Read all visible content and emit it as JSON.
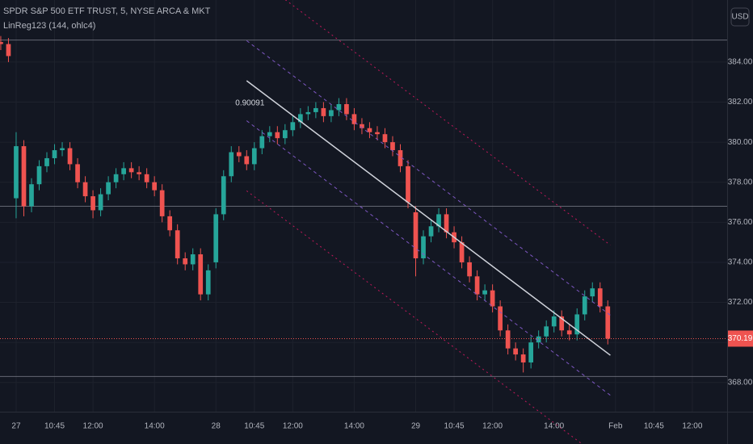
{
  "chart_data": {
    "type": "candlestick",
    "title": "SPDR S&P 500 ETF TRUST, 5, NYSE ARCA & MKT",
    "indicator": "LinReg123 (144, ohlc4)",
    "currency": "USD",
    "up_color": "#26a69a",
    "down_color": "#ef5350",
    "grid": true,
    "x": [
      -6,
      -3,
      0,
      3,
      6,
      9,
      12,
      15,
      18,
      21,
      24,
      27,
      30,
      33,
      36,
      39,
      42,
      45,
      48,
      51,
      54,
      57,
      60,
      63,
      66,
      69,
      72,
      75,
      78,
      81,
      84,
      87,
      90,
      93,
      96,
      99,
      102,
      105,
      108,
      111,
      114,
      117,
      120,
      123,
      126,
      129,
      132,
      135,
      138,
      141,
      144,
      147,
      150,
      153,
      156,
      159,
      162,
      165,
      168,
      171,
      174,
      177,
      180,
      183,
      186,
      189,
      192,
      195,
      198,
      201,
      204,
      207,
      210,
      213,
      216,
      219,
      222,
      225,
      228,
      231
    ],
    "open": [
      385.0,
      384.9,
      377.2,
      379.8,
      376.8,
      377.9,
      378.8,
      379.2,
      379.6,
      379.7,
      378.9,
      378.0,
      377.3,
      376.6,
      377.4,
      378.0,
      378.4,
      378.7,
      378.5,
      378.4,
      378.0,
      377.6,
      376.3,
      375.6,
      374.2,
      373.9,
      374.4,
      372.4,
      374.0,
      376.4,
      378.3,
      379.5,
      379.3,
      378.9,
      379.7,
      380.3,
      380.5,
      380.2,
      380.6,
      381.0,
      381.4,
      381.5,
      381.7,
      381.3,
      381.6,
      381.9,
      381.4,
      380.9,
      380.7,
      380.5,
      380.4,
      380.0,
      379.6,
      378.8,
      376.5,
      374.2,
      375.3,
      375.8,
      376.4,
      375.5,
      375.0,
      374.0,
      373.3,
      372.4,
      372.6,
      371.8,
      370.6,
      369.7,
      369.4,
      369.0,
      370.0,
      370.3,
      370.8,
      371.3,
      370.6,
      370.4,
      371.4,
      372.3,
      372.7,
      371.8
    ],
    "high": [
      385.3,
      385.2,
      380.5,
      380.1,
      378.2,
      379.1,
      379.5,
      379.9,
      380.0,
      380.0,
      379.2,
      378.3,
      377.6,
      377.7,
      378.3,
      378.7,
      379.0,
      379.0,
      378.8,
      378.7,
      378.3,
      377.9,
      376.6,
      375.9,
      374.5,
      374.7,
      374.7,
      373.9,
      376.7,
      378.6,
      379.8,
      379.8,
      379.6,
      380.0,
      380.6,
      380.8,
      380.8,
      380.9,
      381.3,
      381.7,
      381.8,
      382.0,
      382.0,
      381.9,
      382.2,
      382.2,
      381.7,
      381.2,
      381.0,
      380.8,
      380.7,
      380.3,
      379.9,
      379.1,
      376.8,
      375.6,
      376.1,
      376.7,
      376.7,
      375.8,
      375.3,
      374.3,
      373.6,
      372.9,
      372.9,
      372.1,
      370.9,
      370.0,
      369.7,
      370.3,
      370.6,
      371.1,
      371.6,
      371.6,
      370.9,
      371.7,
      372.6,
      373.0,
      373.0,
      372.1
    ],
    "low": [
      384.6,
      384.0,
      376.2,
      376.3,
      376.5,
      377.6,
      378.5,
      378.9,
      379.3,
      378.6,
      377.7,
      377.0,
      376.2,
      376.3,
      377.1,
      377.7,
      378.1,
      378.2,
      378.1,
      377.7,
      377.3,
      376.0,
      375.3,
      373.9,
      373.6,
      373.6,
      372.1,
      372.1,
      373.7,
      376.1,
      378.0,
      379.0,
      378.6,
      378.6,
      379.4,
      380.0,
      379.9,
      379.9,
      380.3,
      380.7,
      381.1,
      381.2,
      381.0,
      381.0,
      381.3,
      381.1,
      380.6,
      380.4,
      380.2,
      380.1,
      379.7,
      379.3,
      378.5,
      376.7,
      373.3,
      373.9,
      375.0,
      375.5,
      375.2,
      374.7,
      373.7,
      373.0,
      372.1,
      372.1,
      371.5,
      370.3,
      369.4,
      369.1,
      368.5,
      368.7,
      369.7,
      370.0,
      370.5,
      370.3,
      370.1,
      370.1,
      371.1,
      372.0,
      371.5,
      369.9
    ],
    "close": [
      384.9,
      384.3,
      379.8,
      376.8,
      377.9,
      378.8,
      379.2,
      379.6,
      379.7,
      378.9,
      378.0,
      377.3,
      376.6,
      377.4,
      378.0,
      378.4,
      378.7,
      378.5,
      378.4,
      378.0,
      377.6,
      376.3,
      375.6,
      374.2,
      373.9,
      374.4,
      372.4,
      373.6,
      376.4,
      378.3,
      379.5,
      379.3,
      378.9,
      379.7,
      380.3,
      380.5,
      380.2,
      380.6,
      381.0,
      381.4,
      381.5,
      381.7,
      381.3,
      381.6,
      381.9,
      381.4,
      380.9,
      380.7,
      380.5,
      380.4,
      380.0,
      379.6,
      378.8,
      377.0,
      374.2,
      375.3,
      375.8,
      376.4,
      375.5,
      375.0,
      374.0,
      373.3,
      372.4,
      372.6,
      371.8,
      370.6,
      369.7,
      369.4,
      369.0,
      370.0,
      370.3,
      370.8,
      371.3,
      370.6,
      370.4,
      371.4,
      372.3,
      372.7,
      371.8,
      370.19
    ],
    "regression": {
      "x": [
        90,
        232
      ],
      "y": [
        383.07,
        369.36
      ],
      "deviations": [
        2.0,
        5.5
      ],
      "pearson": 0.90091,
      "color": "#d1d4dc",
      "inner_color": "#7e57c2",
      "outer_color": "#c2185b"
    },
    "hlines": [
      385.1,
      376.8,
      368.3
    ],
    "xlim": [
      -6.3,
      277.6
    ],
    "ylim": [
      366.54,
      387.1
    ],
    "xticks": [
      {
        "value": 0,
        "label": "27"
      },
      {
        "value": 15,
        "label": "10:45"
      },
      {
        "value": 30,
        "label": "12:00"
      },
      {
        "value": 54,
        "label": "14:00"
      },
      {
        "value": 78,
        "label": "28"
      },
      {
        "value": 93,
        "label": "10:45"
      },
      {
        "value": 108,
        "label": "12:00"
      },
      {
        "value": 132,
        "label": "14:00"
      },
      {
        "value": 156,
        "label": "29"
      },
      {
        "value": 171,
        "label": "10:45"
      },
      {
        "value": 186,
        "label": "12:00"
      },
      {
        "value": 210,
        "label": "14:00"
      },
      {
        "value": 234,
        "label": "Feb"
      },
      {
        "value": 249,
        "label": "10:45"
      },
      {
        "value": 264,
        "label": "12:00"
      }
    ],
    "yticks": [
      {
        "value": 368,
        "label": "368.00"
      },
      {
        "value": 370,
        "label": "370.00"
      },
      {
        "value": 372,
        "label": "372.00"
      },
      {
        "value": 374,
        "label": "374.00"
      },
      {
        "value": 376,
        "label": "376.00"
      },
      {
        "value": 378,
        "label": "378.00"
      },
      {
        "value": 380,
        "label": "380.00"
      },
      {
        "value": 382,
        "label": "382.00"
      },
      {
        "value": 384,
        "label": "384.00"
      }
    ]
  }
}
